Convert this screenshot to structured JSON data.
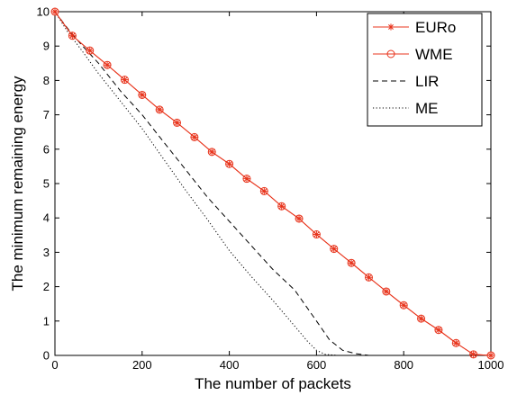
{
  "chart_data": {
    "type": "line",
    "title": "",
    "xlabel": "The number of packets",
    "ylabel": "The minimum remaining energy",
    "xlim": [
      0,
      1000
    ],
    "ylim": [
      0,
      10
    ],
    "xticks": [
      0,
      200,
      400,
      600,
      800,
      1000
    ],
    "yticks": [
      0,
      1,
      2,
      3,
      4,
      5,
      6,
      7,
      8,
      9,
      10
    ],
    "grid": false,
    "legend_position": "top-right",
    "series": [
      {
        "name": "EURo",
        "color": "#e8341c",
        "style": "solid",
        "marker": "asterisk",
        "x": [
          0,
          40,
          80,
          120,
          160,
          200,
          240,
          280,
          320,
          360,
          400,
          440,
          480,
          520,
          560,
          600,
          640,
          680,
          720,
          760,
          800,
          840,
          880,
          920,
          960,
          1000
        ],
        "y": [
          10,
          9.3,
          8.87,
          8.45,
          8.02,
          7.58,
          7.15,
          6.77,
          6.35,
          5.92,
          5.57,
          5.14,
          4.78,
          4.34,
          3.98,
          3.52,
          3.1,
          2.69,
          2.27,
          1.86,
          1.46,
          1.07,
          0.74,
          0.36,
          0.03,
          0
        ]
      },
      {
        "name": "WME",
        "color": "#e8341c",
        "style": "solid",
        "marker": "circle",
        "x": [
          0,
          40,
          80,
          120,
          160,
          200,
          240,
          280,
          320,
          360,
          400,
          440,
          480,
          520,
          560,
          600,
          640,
          680,
          720,
          760,
          800,
          840,
          880,
          920,
          960,
          1000
        ],
        "y": [
          10,
          9.3,
          8.87,
          8.45,
          8.02,
          7.58,
          7.15,
          6.77,
          6.35,
          5.92,
          5.57,
          5.14,
          4.78,
          4.34,
          3.98,
          3.52,
          3.1,
          2.69,
          2.27,
          1.86,
          1.46,
          1.07,
          0.74,
          0.36,
          0.03,
          0
        ]
      },
      {
        "name": "LIR",
        "color": "#000000",
        "style": "dashed",
        "marker": "none",
        "x": [
          0,
          30,
          60,
          100,
          150,
          200,
          250,
          300,
          350,
          400,
          450,
          500,
          550,
          600,
          630,
          660,
          690,
          720,
          760
        ],
        "y": [
          10,
          9.5,
          9.05,
          8.5,
          7.7,
          7.0,
          6.2,
          5.4,
          4.6,
          3.9,
          3.2,
          2.5,
          1.9,
          1.0,
          0.45,
          0.15,
          0.05,
          0.0,
          0.0
        ]
      },
      {
        "name": "ME",
        "color": "#000000",
        "style": "dotted",
        "marker": "none",
        "x": [
          0,
          30,
          60,
          100,
          150,
          200,
          250,
          300,
          350,
          400,
          450,
          500,
          550,
          580,
          600,
          620,
          650
        ],
        "y": [
          10,
          9.4,
          8.9,
          8.2,
          7.4,
          6.6,
          5.7,
          4.8,
          3.95,
          3.05,
          2.3,
          1.6,
          0.85,
          0.4,
          0.15,
          0.03,
          0.0
        ]
      }
    ]
  }
}
